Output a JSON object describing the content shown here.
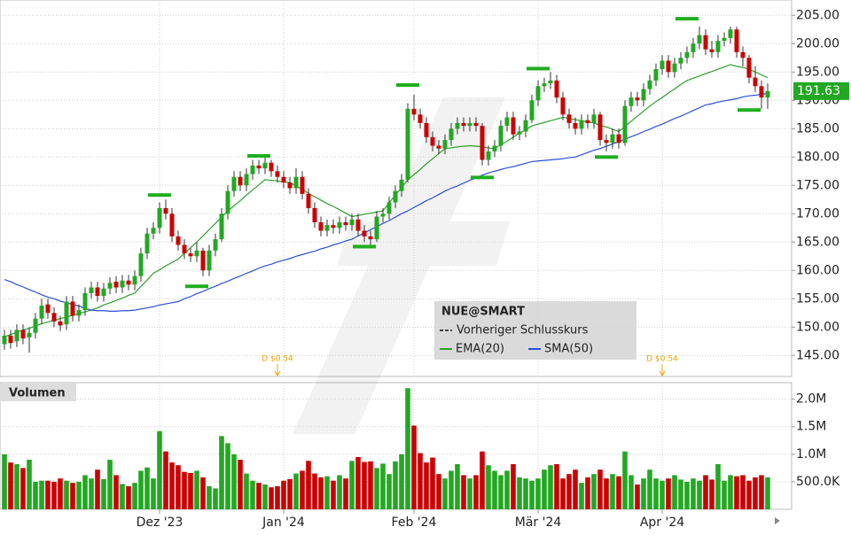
{
  "chart_data": {
    "type": "candlestick",
    "symbol": "NUE@SMART",
    "prev_close_label": "Vorheriger Schlusskurs",
    "volume_title": "Volumen",
    "up_color": "#22a822",
    "down_color": "#cc0000",
    "categories": [
      null,
      null,
      null,
      null,
      null,
      null,
      null,
      null,
      null,
      null,
      null,
      null,
      null,
      null,
      null,
      null,
      null,
      null,
      null,
      null,
      null,
      null,
      null,
      null,
      null,
      "Dez '23",
      null,
      null,
      null,
      null,
      null,
      null,
      null,
      null,
      null,
      null,
      null,
      null,
      null,
      null,
      null,
      null,
      null,
      null,
      null,
      "Jan '24",
      null,
      null,
      null,
      null,
      null,
      null,
      null,
      null,
      null,
      null,
      null,
      null,
      null,
      null,
      null,
      null,
      null,
      null,
      null,
      null,
      "Feb '24",
      null,
      null,
      null,
      null,
      null,
      null,
      null,
      null,
      null,
      null,
      null,
      null,
      null,
      null,
      null,
      null,
      null,
      null,
      null,
      "Mär '24",
      null,
      null,
      null,
      null,
      null,
      null,
      null,
      null,
      null,
      null,
      null,
      null,
      null,
      null,
      null,
      null,
      null,
      null,
      null,
      "Apr '24",
      null,
      null,
      null,
      null,
      null,
      null,
      null,
      null,
      null,
      null,
      null,
      null,
      null,
      null,
      null,
      null,
      null
    ],
    "open": [
      147,
      148.5,
      147.5,
      149.5,
      148.2,
      149,
      151.5,
      154,
      152.5,
      151,
      150.5,
      154.5,
      152,
      153,
      156,
      157,
      155.5,
      156.8,
      158,
      157,
      158.2,
      157.5,
      159,
      163,
      166.5,
      167.5,
      171,
      170,
      166,
      164.5,
      163,
      162.5,
      163.5,
      160,
      163.5,
      165.5,
      170,
      174,
      176.5,
      175,
      177,
      178.5,
      178,
      179,
      177.5,
      176.5,
      175.5,
      174.5,
      176.5,
      173.5,
      171,
      168.5,
      167,
      168,
      167.5,
      168.5,
      168,
      169,
      167,
      166,
      165.5,
      169.5,
      170,
      172,
      174,
      176,
      188.5,
      187.5,
      186,
      183.5,
      182,
      181.5,
      183,
      185,
      186,
      185.5,
      186,
      185.5,
      179.5,
      181,
      182,
      185.5,
      187,
      184,
      184.5,
      186.5,
      190,
      192.5,
      193,
      193.5,
      190.5,
      187.5,
      186,
      185,
      186.5,
      186,
      187.5,
      183,
      182.5,
      184,
      182.5,
      189,
      190.5,
      190,
      192,
      193.5,
      195.5,
      197,
      195,
      196.5,
      197.5,
      198.5,
      200,
      201.5,
      199,
      198.5,
      200.5,
      201,
      202.5,
      198.5,
      197.5,
      194,
      192.5,
      190.5
    ],
    "high": [
      149.5,
      149.5,
      150.5,
      150.5,
      150,
      152.5,
      155,
      155,
      153.5,
      152,
      155.5,
      155.5,
      154,
      157,
      158,
      158,
      157.8,
      158.8,
      159,
      159.2,
      159.2,
      160,
      164,
      167.5,
      168.5,
      172,
      172.5,
      171,
      167,
      165.5,
      164,
      165,
      164,
      164.5,
      166.5,
      171,
      175,
      177.5,
      177.5,
      178,
      179.5,
      179.5,
      180,
      179.5,
      178.5,
      177.5,
      176.5,
      178,
      177.5,
      174.5,
      172,
      169.5,
      169,
      169,
      169.5,
      169.5,
      170,
      170,
      168,
      167,
      170.5,
      171,
      173,
      175,
      177,
      189.5,
      191,
      188.5,
      187,
      184.5,
      183,
      184,
      186,
      187,
      187,
      187,
      187,
      186,
      182,
      183,
      186.5,
      188,
      188,
      185.5,
      187.5,
      191,
      193.5,
      194,
      195,
      194.5,
      191.5,
      188.5,
      187,
      187.5,
      187.5,
      188.5,
      188,
      184,
      185,
      185,
      190,
      191.5,
      191.5,
      193,
      194.5,
      196.5,
      198,
      198,
      197.5,
      198.5,
      199.5,
      201,
      203,
      202.5,
      200.5,
      201.5,
      202,
      203,
      203,
      199.5,
      198,
      196,
      193.5,
      193
    ],
    "low": [
      146,
      146.2,
      146.5,
      147,
      145.5,
      148,
      150.5,
      151.5,
      150,
      149.3,
      149.5,
      151,
      151,
      152,
      155,
      154.5,
      154.5,
      155.8,
      156,
      156,
      156.5,
      156.5,
      158,
      162,
      165.5,
      166.5,
      169,
      165,
      163.5,
      162,
      161.5,
      161.5,
      159,
      159,
      162.5,
      165,
      169,
      173,
      174,
      174,
      176,
      177,
      177,
      176.5,
      175.5,
      174.5,
      173.5,
      173.5,
      172.5,
      170,
      167.5,
      166,
      166,
      166.5,
      166.5,
      167,
      167,
      166,
      165,
      164.5,
      165,
      168.5,
      169,
      171,
      173,
      175.5,
      186.5,
      185,
      182.5,
      181,
      180.5,
      180.5,
      182,
      184,
      184.5,
      184.5,
      184.5,
      178.5,
      178.5,
      180,
      181,
      184.5,
      183,
      183,
      183.5,
      186,
      189,
      191.5,
      192,
      189.5,
      186.5,
      185,
      184,
      184,
      185,
      185,
      182,
      181,
      181.5,
      181.5,
      182,
      188,
      189,
      189,
      191,
      192.5,
      194.5,
      194,
      194,
      195.5,
      196.5,
      197.5,
      199,
      198,
      197.5,
      197.5,
      199.5,
      200,
      197.5,
      196,
      193,
      191.5,
      188.5,
      188.5
    ],
    "close": [
      148.5,
      147.2,
      149.5,
      148,
      149,
      151.5,
      153.8,
      152.5,
      151,
      150.3,
      154.5,
      152,
      153,
      156,
      157,
      155.5,
      156.8,
      157.8,
      157,
      158.2,
      157.5,
      159,
      163,
      166.5,
      167.5,
      171,
      170,
      166,
      164.5,
      163,
      162.5,
      163.5,
      160,
      163.5,
      165.5,
      170,
      174,
      176.5,
      175,
      177,
      178.5,
      178,
      179,
      177.5,
      176.5,
      175.5,
      174.5,
      176.5,
      173.5,
      171,
      168.5,
      167,
      168,
      167.5,
      168.5,
      168,
      169,
      167,
      166,
      165.5,
      169.5,
      170,
      172,
      174,
      176,
      188.5,
      187.5,
      186,
      183.5,
      182,
      181.5,
      183,
      185,
      186,
      185.5,
      186,
      185.5,
      179.5,
      181,
      182,
      185.5,
      187,
      184,
      184.5,
      186.5,
      190,
      192.5,
      193,
      193.5,
      190.5,
      187.5,
      186,
      185,
      186.5,
      186,
      187.5,
      183,
      182.5,
      184,
      182.5,
      189,
      190.5,
      190,
      192,
      193.5,
      195.5,
      197,
      195,
      196.5,
      197.5,
      198.5,
      200,
      201.5,
      199,
      198.5,
      200.5,
      201,
      202.5,
      198.5,
      197.5,
      194,
      192.5,
      190.5,
      191.63
    ],
    "volume": [
      1000000,
      850000,
      820000,
      750000,
      900000,
      500000,
      520000,
      520000,
      500000,
      560000,
      520000,
      480000,
      500000,
      620000,
      560000,
      720000,
      550000,
      900000,
      620000,
      460000,
      420000,
      480000,
      700000,
      760000,
      560000,
      1420000,
      1050000,
      850000,
      800000,
      680000,
      660000,
      700000,
      580000,
      420000,
      380000,
      1330000,
      1200000,
      1000000,
      900000,
      650000,
      520000,
      480000,
      450000,
      400000,
      420000,
      520000,
      550000,
      650000,
      700000,
      880000,
      650000,
      580000,
      600000,
      520000,
      620000,
      560000,
      880000,
      950000,
      860000,
      870000,
      750000,
      830000,
      640000,
      870000,
      1000000,
      2200000,
      1520000,
      1020000,
      850000,
      940000,
      640000,
      560000,
      700000,
      820000,
      620000,
      560000,
      620000,
      1050000,
      800000,
      700000,
      620000,
      700000,
      820000,
      580000,
      560000,
      520000,
      560000,
      720000,
      800000,
      820000,
      560000,
      640000,
      720000,
      480000,
      580000,
      640000,
      720000,
      560000,
      640000,
      600000,
      1050000,
      620000,
      450000,
      560000,
      720000,
      560000,
      520000,
      560000,
      620000,
      540000,
      500000,
      560000,
      520000,
      620000,
      540000,
      820000,
      520000,
      620000,
      600000,
      620000,
      520000,
      580000,
      620000,
      580000
    ],
    "series": [
      {
        "name": "EMA(20)",
        "color": "#2e9e2e",
        "values": [
          148.3,
          148.7,
          149.1,
          149.5,
          149.8,
          150.2,
          150.6,
          150.9,
          151.2,
          151.5,
          151.8,
          152.1,
          152.4,
          152.7,
          153.0,
          153.4,
          153.9,
          154.3,
          154.7,
          155.1,
          155.6,
          156.0,
          157.2,
          158.3,
          159.5,
          160.1,
          160.8,
          161.4,
          162.0,
          163.0,
          164.0,
          165.0,
          166.1,
          167.2,
          168.3,
          169.4,
          170.5,
          171.4,
          172.3,
          173.3,
          174.2,
          175.1,
          176.0,
          175.9,
          175.8,
          175.6,
          175.5,
          174.9,
          174.3,
          173.6,
          173.0,
          172.4,
          171.8,
          171.3,
          170.7,
          170.1,
          169.5,
          169.7,
          169.9,
          170.1,
          170.3,
          170.5,
          171.9,
          173.3,
          174.6,
          176.0,
          176.9,
          177.8,
          178.8,
          179.7,
          180.6,
          181.5,
          181.6,
          181.8,
          181.9,
          182.0,
          181.9,
          181.8,
          181.6,
          181.5,
          182.2,
          182.8,
          183.5,
          184.2,
          184.8,
          185.5,
          185.8,
          186.1,
          186.4,
          186.7,
          187.0,
          186.8,
          186.6,
          186.4,
          186.2,
          186.0,
          185.6,
          185.3,
          184.9,
          184.5,
          185.4,
          186.3,
          187.2,
          188.1,
          189.0,
          189.8,
          190.5,
          191.3,
          192.0,
          192.8,
          193.5,
          193.9,
          194.3,
          194.7,
          195.1,
          195.5,
          195.9,
          196.3,
          196.0,
          195.8,
          195.5,
          195.0,
          194.5,
          194.0
        ]
      },
      {
        "name": "SMA(50)",
        "color": "#2a4fd6",
        "values": [
          158.4,
          158.0,
          157.5,
          157.1,
          156.6,
          156.2,
          155.7,
          155.3,
          155.0,
          154.6,
          154.3,
          154.0,
          153.7,
          153.3,
          153.0,
          152.9,
          152.9,
          152.8,
          152.8,
          152.9,
          152.9,
          153.0,
          153.2,
          153.4,
          153.6,
          153.9,
          154.1,
          154.3,
          154.5,
          155.0,
          155.4,
          155.9,
          156.3,
          156.8,
          157.2,
          157.7,
          158.1,
          158.6,
          159.0,
          159.5,
          159.9,
          160.4,
          160.8,
          161.1,
          161.5,
          161.8,
          162.1,
          162.5,
          162.8,
          163.1,
          163.4,
          163.8,
          164.1,
          164.5,
          164.8,
          165.2,
          165.5,
          166.1,
          166.6,
          167.2,
          167.7,
          168.3,
          168.8,
          169.4,
          170.0,
          170.5,
          171.1,
          171.7,
          172.3,
          172.8,
          173.4,
          174.0,
          174.5,
          174.9,
          175.4,
          175.9,
          176.3,
          176.8,
          177.2,
          177.5,
          177.8,
          178.1,
          178.3,
          178.6,
          178.9,
          179.2,
          179.3,
          179.4,
          179.5,
          179.6,
          179.7,
          179.9,
          180.0,
          180.4,
          180.8,
          181.2,
          181.5,
          181.9,
          182.3,
          182.7,
          183.1,
          183.6,
          184.0,
          184.5,
          184.9,
          185.4,
          185.8,
          186.3,
          186.8,
          187.2,
          187.7,
          188.2,
          188.7,
          189.2,
          189.4,
          189.7,
          189.9,
          190.1,
          190.3,
          190.6,
          190.8,
          190.9,
          191.1,
          191.2
        ]
      }
    ],
    "swing_markers": [
      {
        "x": 25,
        "value": 173.3
      },
      {
        "x": 31,
        "value": 157.2
      },
      {
        "x": 41,
        "value": 180.2
      },
      {
        "x": 58,
        "value": 164.2
      },
      {
        "x": 65,
        "value": 192.7
      },
      {
        "x": 77,
        "value": 176.4
      },
      {
        "x": 86,
        "value": 195.6
      },
      {
        "x": 97,
        "value": 180
      },
      {
        "x": 110,
        "value": 204.4
      },
      {
        "x": 120,
        "value": 188.3
      }
    ],
    "marker_color": "#1fae1f",
    "annotations": [
      {
        "text": "D $0.54",
        "x": 44
      },
      {
        "text": "D $0.54",
        "x": 106
      }
    ],
    "ylim": [
      141.3,
      207.7
    ],
    "yticks": [
      {
        "value": 145,
        "label": "145.00"
      },
      {
        "value": 150,
        "label": "150.00"
      },
      {
        "value": 155,
        "label": "155.00"
      },
      {
        "value": 160,
        "label": "160.00"
      },
      {
        "value": 165,
        "label": "165.00"
      },
      {
        "value": 170,
        "label": "170.00"
      },
      {
        "value": 175,
        "label": "175.00"
      },
      {
        "value": 180,
        "label": "180.00"
      },
      {
        "value": 185,
        "label": "185.00"
      },
      {
        "value": 190,
        "label": "190.00"
      },
      {
        "value": 195,
        "label": "195.00"
      },
      {
        "value": 200,
        "label": "200.00"
      },
      {
        "value": 205,
        "label": "205.00"
      }
    ],
    "y2lim": [
      0,
      2300000
    ],
    "y2ticks": [
      {
        "value": 500000,
        "label": "500.0K"
      },
      {
        "value": 1000000,
        "label": "1.0M"
      },
      {
        "value": 1500000,
        "label": "1.5M"
      },
      {
        "value": 2000000,
        "label": "2.0M"
      }
    ],
    "grid": true
  }
}
